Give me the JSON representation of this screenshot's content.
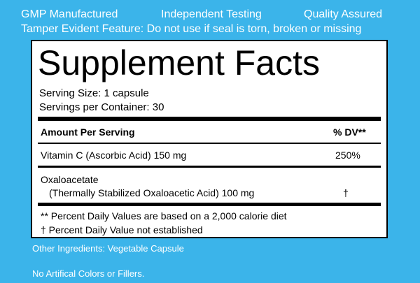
{
  "header": {
    "badges": [
      "GMP Manufactured",
      "Independent Testing",
      "Quality Assured"
    ],
    "tamper": "Tamper Evident Feature: Do not use if seal is torn, broken or missing"
  },
  "facts": {
    "title": "Supplement Facts",
    "serving_size": "Serving Size: 1 capsule",
    "servings_per_container": "Servings per Container: 30",
    "header": [
      "Amount Per Serving",
      "% DV**"
    ],
    "rows": [
      {
        "name": "Vitamin C (Ascorbic Acid) 150 mg",
        "dv": "250%"
      },
      {
        "name": "Oxaloacetate",
        "detail": "(Thermally Stabilized Oxaloacetic Acid) 100 mg",
        "dv": "†"
      }
    ],
    "footnotes": [
      "** Percent Daily Values are based on a 2,000 calorie diet",
      "†  Percent Daily Value not established"
    ]
  },
  "footer": {
    "other_ingredients": "Other Ingredients: Vegetable Capsule",
    "no_additives": "No Artifical Colors or Fillers."
  }
}
